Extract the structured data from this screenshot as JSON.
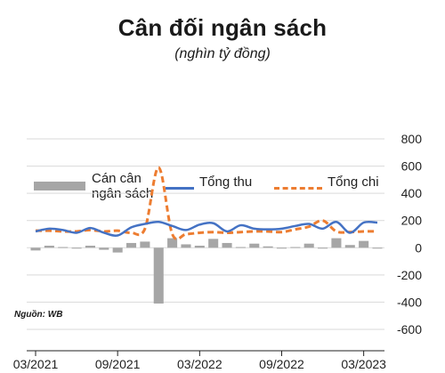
{
  "title": "Cân đối ngân sách",
  "subtitle": "(nghìn tỷ đồng)",
  "source": "Nguồn: WB",
  "legend": {
    "balance": "Cán cân ngân sách",
    "revenue": "Tổng thu",
    "expenditure": "Tổng chi"
  },
  "colors": {
    "balance": "#a6a6a6",
    "revenue": "#4472c4",
    "expenditure": "#ed7d31",
    "grid": "#d9d9d9"
  },
  "chart_data": {
    "type": "bar",
    "title": "Cân đối ngân sách",
    "subtitle": "(nghìn tỷ đồng)",
    "legend_position": "top",
    "grid": true,
    "ylim": [
      -600,
      800
    ],
    "y_ticks": [
      800,
      600,
      400,
      200,
      0,
      -200,
      -400,
      -600
    ],
    "x_tick_labels": [
      "03/2021",
      "09/2021",
      "03/2022",
      "09/2022",
      "03/2023"
    ],
    "x_tick_months": [
      0,
      6,
      12,
      18,
      24
    ],
    "months": [
      0,
      1,
      2,
      3,
      4,
      5,
      6,
      7,
      8,
      9,
      10,
      11,
      12,
      13,
      14,
      15,
      16,
      17,
      18,
      19,
      20,
      21,
      22,
      23,
      24,
      25
    ],
    "series": [
      {
        "name": "Cán cân ngân sách",
        "kind": "bar",
        "values": [
          -20,
          15,
          5,
          -5,
          15,
          -15,
          -35,
          35,
          45,
          -410,
          70,
          25,
          15,
          65,
          35,
          5,
          30,
          10,
          -5,
          5,
          30,
          0,
          70,
          20,
          50,
          0
        ]
      },
      {
        "name": "Tổng thu",
        "kind": "line",
        "values": [
          120,
          140,
          130,
          110,
          145,
          110,
          90,
          150,
          175,
          190,
          160,
          130,
          170,
          180,
          120,
          165,
          140,
          135,
          140,
          160,
          175,
          140,
          190,
          110,
          185,
          185
        ]
      },
      {
        "name": "Tổng chi",
        "kind": "dashed-line",
        "values": [
          125,
          125,
          120,
          120,
          130,
          120,
          125,
          110,
          140,
          590,
          100,
          100,
          110,
          115,
          110,
          115,
          120,
          120,
          115,
          135,
          155,
          200,
          120,
          115,
          120,
          120
        ]
      }
    ]
  }
}
